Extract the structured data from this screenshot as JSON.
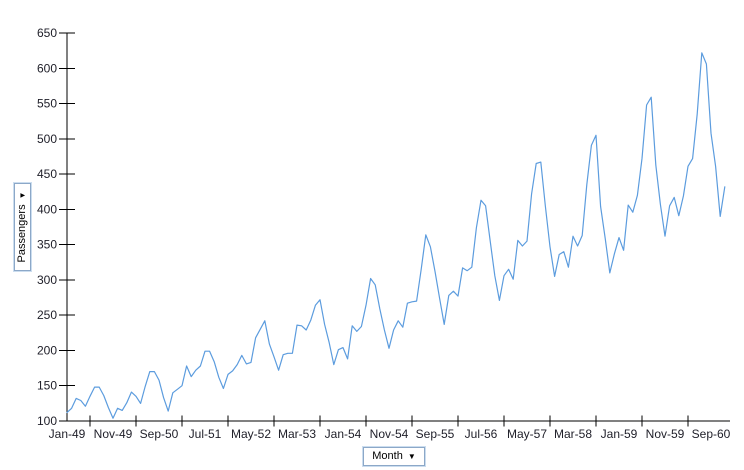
{
  "controls": {
    "y_axis_dropdown": {
      "label": "Passengers",
      "arrow": "▼"
    },
    "x_axis_dropdown": {
      "label": "Month",
      "arrow": "▼"
    }
  },
  "colors": {
    "line": "#5C9CDE",
    "axis": "#000000",
    "tick_text": "#1E1E28",
    "button_border": "#8CA8C8",
    "background": "#FFFFFF"
  },
  "chart_data": {
    "type": "line",
    "title": "",
    "xlabel": "Month",
    "ylabel": "Passengers",
    "x_start": "Jan-49",
    "x_end": "Dec-60",
    "x_interval": "monthly",
    "grid": false,
    "legend": "none",
    "ylim": [
      100,
      650
    ],
    "y_ticks": [
      100,
      150,
      200,
      250,
      300,
      350,
      400,
      450,
      500,
      550,
      600,
      650
    ],
    "x_tick_labels": [
      "Jan-49",
      "Nov-49",
      "Sep-50",
      "Jul-51",
      "May-52",
      "Mar-53",
      "Jan-54",
      "Nov-54",
      "Sep-55",
      "Jul-56",
      "May-57",
      "Mar-58",
      "Jan-59",
      "Nov-59",
      "Sep-60"
    ],
    "series": [
      {
        "name": "Passengers",
        "values": [
          112,
          118,
          132,
          129,
          121,
          135,
          148,
          148,
          136,
          119,
          104,
          118,
          115,
          126,
          141,
          135,
          125,
          149,
          170,
          170,
          158,
          133,
          114,
          140,
          145,
          150,
          178,
          163,
          172,
          178,
          199,
          199,
          184,
          162,
          146,
          166,
          171,
          180,
          193,
          181,
          183,
          218,
          230,
          242,
          209,
          191,
          172,
          194,
          196,
          196,
          236,
          235,
          229,
          243,
          264,
          272,
          237,
          211,
          180,
          201,
          204,
          188,
          235,
          227,
          234,
          264,
          302,
          293,
          259,
          229,
          203,
          229,
          242,
          233,
          267,
          269,
          270,
          315,
          364,
          347,
          312,
          274,
          237,
          278,
          284,
          277,
          317,
          313,
          318,
          374,
          413,
          405,
          355,
          306,
          271,
          306,
          315,
          301,
          356,
          348,
          355,
          422,
          465,
          467,
          404,
          347,
          305,
          336,
          340,
          318,
          362,
          348,
          363,
          435,
          491,
          505,
          404,
          359,
          310,
          337,
          360,
          342,
          406,
          396,
          420,
          472,
          548,
          559,
          463,
          407,
          362,
          405,
          417,
          391,
          419,
          461,
          472,
          535,
          622,
          606,
          508,
          461,
          390,
          432
        ]
      }
    ]
  }
}
